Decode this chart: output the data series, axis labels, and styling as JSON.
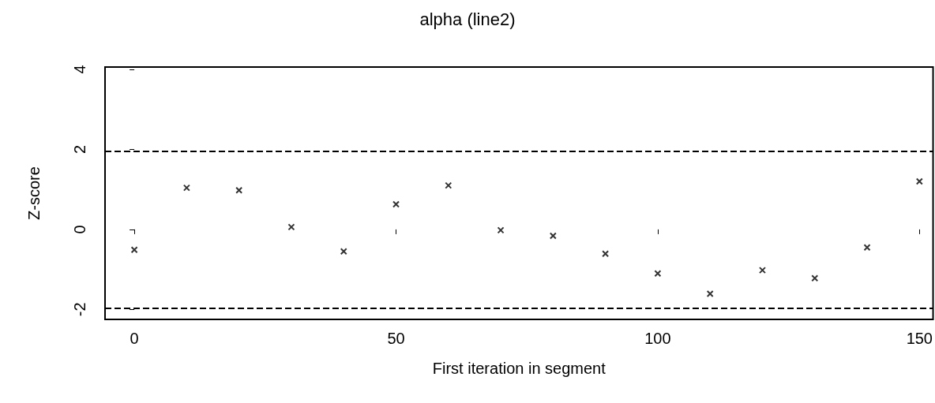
{
  "chart_data": {
    "type": "scatter",
    "title": "alpha (line2)",
    "xlabel": "First iteration in segment",
    "ylabel": "Z-score",
    "x": [
      0,
      10,
      20,
      30,
      40,
      50,
      60,
      70,
      80,
      90,
      100,
      110,
      120,
      130,
      140,
      150
    ],
    "values": [
      -0.51,
      1.04,
      0.98,
      0.06,
      -0.55,
      0.63,
      1.1,
      -0.02,
      -0.16,
      -0.61,
      -1.1,
      -1.61,
      -1.02,
      -1.22,
      -0.45,
      1.2
    ],
    "color": "#000000",
    "marker": "cross",
    "grid": false,
    "xlim": [
      -5.6,
      152.6
    ],
    "xticks": [
      0,
      50,
      100,
      150
    ],
    "ylim": [
      -2.25,
      4.06
    ],
    "yticks": [
      -2,
      0,
      2,
      4
    ],
    "ref_lines": [
      {
        "axis": "y",
        "value": 1.96,
        "line_style": "dashed",
        "color": "#000000"
      },
      {
        "axis": "y",
        "value": -1.96,
        "line_style": "dashed",
        "color": "#000000"
      }
    ]
  }
}
